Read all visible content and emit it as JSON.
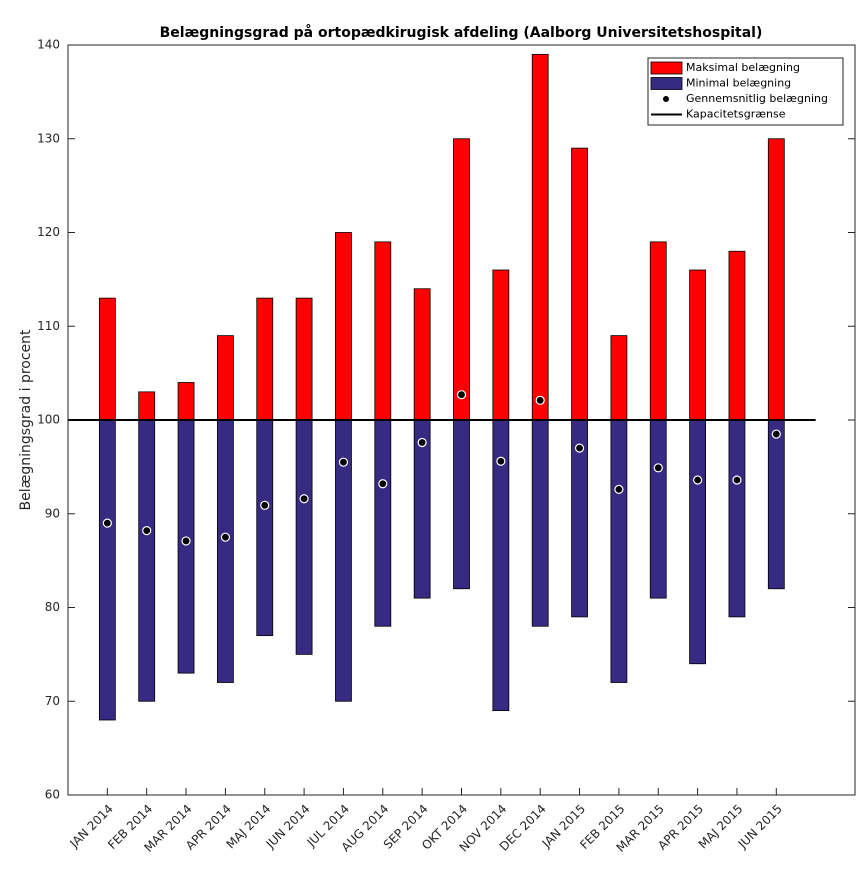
{
  "chart_data": {
    "type": "bar",
    "title": "Belægningsgrad på ortopædkirugisk afdeling (Aalborg Universitetshospital)",
    "ylabel": "Belægningsgrad i procent",
    "categories": [
      "JAN 2014",
      "FEB 2014",
      "MAR 2014",
      "APR 2014",
      "MAJ 2014",
      "JUN 2014",
      "JUL 2014",
      "AUG 2014",
      "SEP 2014",
      "OKT 2014",
      "NOV 2014",
      "DEC 2014",
      "JAN 2015",
      "FEB 2015",
      "MAR 2015",
      "APR 2015",
      "MAJ 2015",
      "JUN 2015"
    ],
    "series": [
      {
        "name": "Maksimal belægning",
        "color": "#ff0000",
        "values": [
          113,
          103,
          104,
          109,
          113,
          113,
          120,
          119,
          114,
          130,
          116,
          139,
          129,
          109,
          119,
          116,
          118,
          130
        ]
      },
      {
        "name": "Minimal belægning",
        "color": "#372a82",
        "values": [
          68,
          70,
          73,
          72,
          77,
          75,
          70,
          78,
          81,
          82,
          69,
          78,
          79,
          72,
          81,
          74,
          79,
          82
        ]
      },
      {
        "name": "Gennemsnitlig belægning",
        "color": "#000000",
        "values": [
          89,
          88.2,
          87.1,
          87.5,
          90.9,
          91.6,
          95.5,
          93.2,
          97.6,
          102.7,
          95.6,
          102.1,
          97,
          92.6,
          94.9,
          93.6,
          93.6,
          98.5
        ]
      }
    ],
    "capacity": {
      "name": "Kapacitetsgrænse",
      "value": 100,
      "color": "#000000"
    },
    "ylim": [
      60,
      140
    ],
    "yticks": [
      60,
      70,
      80,
      90,
      100,
      110,
      120,
      130,
      140
    ],
    "grid": false,
    "legend": "upper right"
  }
}
